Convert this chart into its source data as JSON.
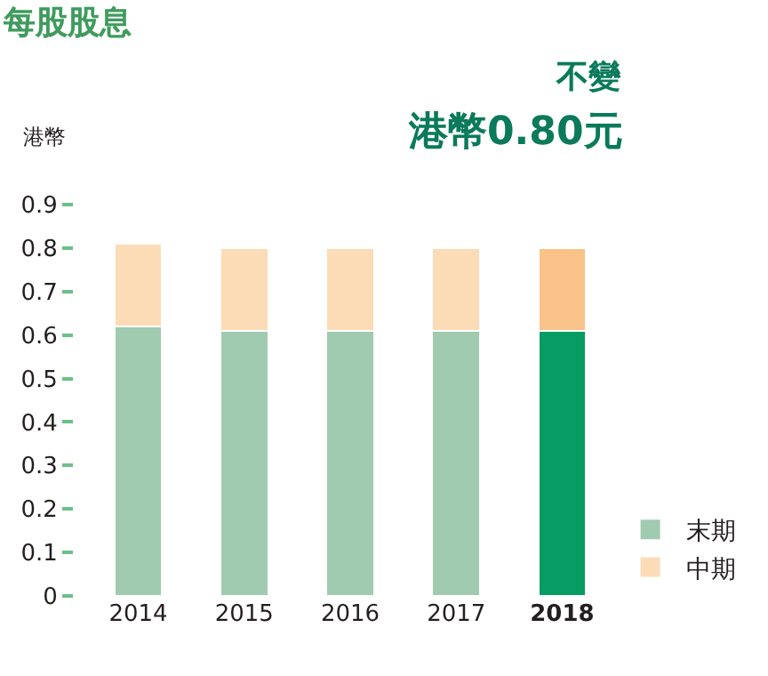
{
  "chart_data": {
    "type": "bar",
    "stacked": true,
    "title": "每股股息",
    "ylabel": "港幣",
    "annotations": [
      "不變",
      "港幣0.80元"
    ],
    "categories": [
      "2014",
      "2015",
      "2016",
      "2017",
      "2018"
    ],
    "series": [
      {
        "name": "末期",
        "color": "#a0cbb0",
        "colors": [
          "#a0cbb0",
          "#a0cbb0",
          "#a0cbb0",
          "#a0cbb0",
          "#069c63"
        ],
        "values": [
          0.62,
          0.61,
          0.61,
          0.61,
          0.61
        ]
      },
      {
        "name": "中期",
        "color": "#fcdcb6",
        "colors": [
          "#fcdcb6",
          "#fcdcb6",
          "#fcdcb6",
          "#fcdcb6",
          "#f9c389"
        ],
        "values": [
          0.19,
          0.19,
          0.19,
          0.19,
          0.19
        ]
      }
    ],
    "ylim": [
      0,
      0.9
    ],
    "yticks": [
      0,
      0.1,
      0.2,
      0.3,
      0.4,
      0.5,
      0.6,
      0.7,
      0.8,
      0.9
    ],
    "legend": "bottom right"
  }
}
